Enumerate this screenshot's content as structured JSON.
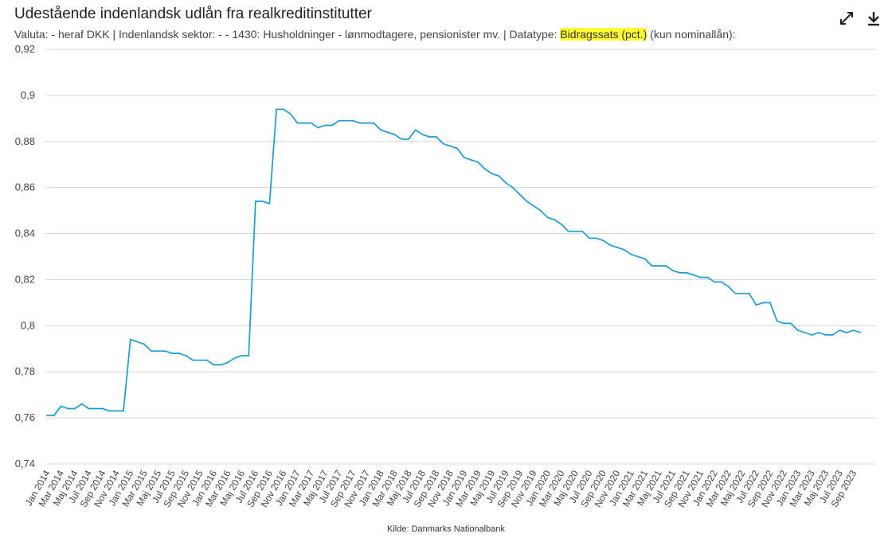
{
  "header": {
    "title": "Udestående indenlandsk udlån fra realkreditinstitutter",
    "subtitle_prefix": "Valuta: - heraf DKK | Indenlandsk sektor: - - 1430: Husholdninger - lønmodtagere, pensionister mv. | Datatype: ",
    "subtitle_highlight": "Bidragssats (pct.)",
    "subtitle_suffix": " (kun nominallån):"
  },
  "toolbar": {
    "expand_icon": "expand-arrows-icon",
    "download_icon": "download-icon"
  },
  "footer": {
    "source": "Kilde: Danmarks Nationalbank"
  },
  "colors": {
    "line": "#1c9ad6",
    "grid": "#d8d8d8",
    "highlight": "#ffff33"
  },
  "chart_data": {
    "type": "line",
    "x_start": "Jan 2014",
    "x_labels": [
      "Jan 2014",
      "Mar 2014",
      "Maj 2014",
      "Jul 2014",
      "Sep 2014",
      "Nov 2014",
      "Jan 2015",
      "Mar 2015",
      "Maj 2015",
      "Jul 2015",
      "Sep 2015",
      "Nov 2015",
      "Jan 2016",
      "Mar 2016",
      "Maj 2016",
      "Jul 2016",
      "Sep 2016",
      "Nov 2016",
      "Jan 2017",
      "Mar 2017",
      "Maj 2017",
      "Jul 2017",
      "Sep 2017",
      "Nov 2017",
      "Jan 2018",
      "Mar 2018",
      "Maj 2018",
      "Jul 2018",
      "Sep 2018",
      "Nov 2018",
      "Jan 2019",
      "Mar 2019",
      "Maj 2019",
      "Jul 2019",
      "Sep 2019",
      "Nov 2019",
      "Jan 2020",
      "Mar 2020",
      "Maj 2020",
      "Jul 2020",
      "Sep 2020",
      "Nov 2020",
      "Jan 2021",
      "Mar 2021",
      "Maj 2021",
      "Jul 2021",
      "Sep 2021",
      "Nov 2021",
      "Jan 2022",
      "Mar 2022",
      "Maj 2022",
      "Jul 2022",
      "Sep 2022",
      "Nov 2022",
      "Jan 2023",
      "Mar 2023",
      "Maj 2023",
      "Jul 2023",
      "Sep 2023"
    ],
    "y_ticks": [
      "0,74",
      "0,76",
      "0,78",
      "0,8",
      "0,82",
      "0,84",
      "0,86",
      "0,88",
      "0,9",
      "0,92"
    ],
    "ylim": [
      0.74,
      0.92
    ],
    "grid": true,
    "legend": "none",
    "series": [
      {
        "values": [
          0.761,
          0.761,
          0.765,
          0.764,
          0.764,
          0.766,
          0.764,
          0.764,
          0.764,
          0.763,
          0.763,
          0.763,
          0.794,
          0.793,
          0.792,
          0.789,
          0.789,
          0.789,
          0.788,
          0.788,
          0.787,
          0.785,
          0.785,
          0.785,
          0.783,
          0.783,
          0.784,
          0.786,
          0.787,
          0.787,
          0.854,
          0.854,
          0.853,
          0.894,
          0.894,
          0.892,
          0.888,
          0.888,
          0.888,
          0.886,
          0.887,
          0.887,
          0.889,
          0.889,
          0.889,
          0.888,
          0.888,
          0.888,
          0.885,
          0.884,
          0.883,
          0.881,
          0.881,
          0.885,
          0.883,
          0.882,
          0.882,
          0.879,
          0.878,
          0.877,
          0.873,
          0.872,
          0.871,
          0.868,
          0.866,
          0.865,
          0.862,
          0.86,
          0.857,
          0.854,
          0.852,
          0.85,
          0.847,
          0.846,
          0.844,
          0.841,
          0.841,
          0.841,
          0.838,
          0.838,
          0.837,
          0.835,
          0.834,
          0.833,
          0.831,
          0.83,
          0.829,
          0.826,
          0.826,
          0.826,
          0.824,
          0.823,
          0.823,
          0.822,
          0.821,
          0.821,
          0.819,
          0.819,
          0.817,
          0.814,
          0.814,
          0.814,
          0.809,
          0.81,
          0.81,
          0.802,
          0.801,
          0.801,
          0.798,
          0.797,
          0.796,
          0.797,
          0.796,
          0.796,
          0.798,
          0.797,
          0.798,
          0.797
        ]
      }
    ]
  }
}
